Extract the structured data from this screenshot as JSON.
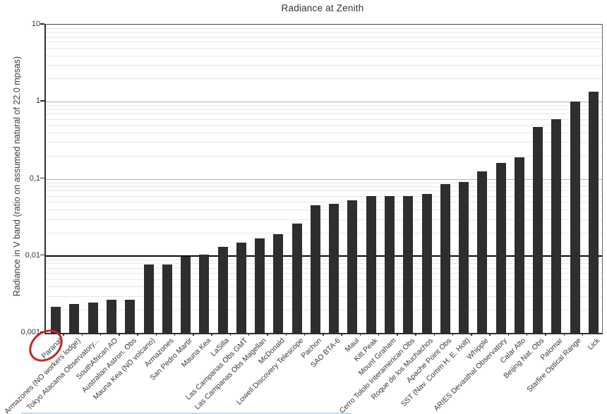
{
  "title": "Radiance at Zenith",
  "chart_data": {
    "type": "bar",
    "title": "Radiance at Zenith",
    "xlabel": "",
    "ylabel": "Radiance in V band (ratio on assumed natural of 22.0 mpsas)",
    "yscale": "log",
    "ylim": [
      0.001,
      10
    ],
    "yticks": [
      10,
      1,
      0.1,
      0.01,
      0.001
    ],
    "ytick_labels": [
      "10",
      "1",
      "0,1",
      "0,01",
      "0,001"
    ],
    "reference_line": 0.01,
    "grid": "log minor and major gridlines on",
    "legend": "none",
    "bar_color": "#2e2e2e",
    "categories": [
      "Paranal",
      "Armazones (NO workers lodge)",
      "Tokyo Atacama Observatory...",
      "SouthAfrican AO",
      "Australian Astron. Obs",
      "Mauna Kea (NO volcano)",
      "Armazones",
      "San Pedro Martir",
      "Mauna Kea",
      "LaSilla",
      "Las Campanas Obs GMT",
      "Las Campanas Obs Magellan",
      "McDonald",
      "Lowell Discovery Telescope",
      "Pachon",
      "SAO BTA-6",
      "Maui",
      "Kitt Peak",
      "Mount Graham",
      "Cerro Tololo Interamerican Obs",
      "Roque de los Muchachos",
      "Apache Point Obs",
      "SST (Nav. Comm H. E. Holt)",
      "Whipple",
      "ARIES Devasthal Observatory",
      "Calar Alto",
      "Beijing Nat. Obs",
      "Palomar",
      "Starfire Optical Range",
      "Lick"
    ],
    "values": [
      0.0022,
      0.0024,
      0.0025,
      0.0027,
      0.0027,
      0.0077,
      0.0078,
      0.0098,
      0.0104,
      0.013,
      0.015,
      0.017,
      0.019,
      0.026,
      0.045,
      0.047,
      0.053,
      0.06,
      0.06,
      0.06,
      0.064,
      0.085,
      0.092,
      0.125,
      0.16,
      0.19,
      0.47,
      0.6,
      1.0,
      1.35
    ],
    "annotation": {
      "type": "hand-drawn-circle",
      "target": "Paranal",
      "color": "#c62424"
    }
  }
}
